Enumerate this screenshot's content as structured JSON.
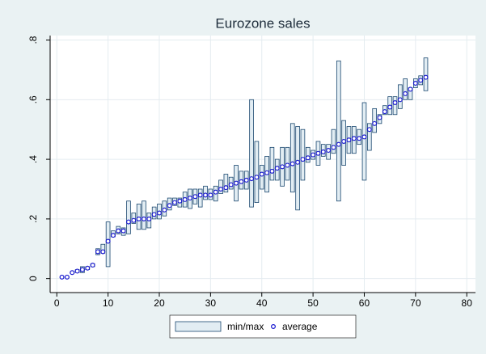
{
  "chart_data": {
    "type": "rangebar",
    "title": "Eurozone sales",
    "x": [
      1,
      2,
      3,
      4,
      5,
      6,
      7,
      8,
      9,
      10,
      11,
      12,
      13,
      14,
      15,
      16,
      17,
      18,
      19,
      20,
      21,
      22,
      23,
      24,
      25,
      26,
      27,
      28,
      29,
      30,
      31,
      32,
      33,
      34,
      35,
      36,
      37,
      38,
      39,
      40,
      41,
      42,
      43,
      44,
      45,
      46,
      47,
      48,
      49,
      50,
      51,
      52,
      53,
      54,
      55,
      56,
      57,
      58,
      59,
      60,
      61,
      62,
      63,
      64,
      65,
      66,
      67,
      68,
      69,
      70,
      71,
      72
    ],
    "series": [
      {
        "name": "min/max",
        "color": "#1a476f",
        "fill": "#e2edf3",
        "min": [
          0.005,
          0.005,
          0.02,
          0.02,
          0.02,
          0.03,
          0.04,
          0.08,
          0.085,
          0.04,
          0.14,
          0.15,
          0.145,
          0.15,
          0.185,
          0.165,
          0.165,
          0.17,
          0.2,
          0.2,
          0.21,
          0.23,
          0.245,
          0.24,
          0.24,
          0.235,
          0.25,
          0.24,
          0.265,
          0.265,
          0.26,
          0.285,
          0.29,
          0.3,
          0.26,
          0.3,
          0.3,
          0.24,
          0.255,
          0.3,
          0.29,
          0.33,
          0.33,
          0.31,
          0.33,
          0.29,
          0.23,
          0.33,
          0.39,
          0.4,
          0.38,
          0.41,
          0.4,
          0.42,
          0.26,
          0.38,
          0.42,
          0.42,
          0.45,
          0.33,
          0.43,
          0.49,
          0.52,
          0.55,
          0.55,
          0.55,
          0.57,
          0.6,
          0.6,
          0.64,
          0.65,
          0.63
        ],
        "max": [
          0.005,
          0.005,
          0.02,
          0.03,
          0.04,
          0.04,
          0.05,
          0.1,
          0.115,
          0.19,
          0.16,
          0.175,
          0.17,
          0.26,
          0.22,
          0.25,
          0.26,
          0.22,
          0.24,
          0.25,
          0.26,
          0.27,
          0.27,
          0.27,
          0.29,
          0.3,
          0.3,
          0.3,
          0.31,
          0.3,
          0.31,
          0.33,
          0.35,
          0.34,
          0.38,
          0.36,
          0.36,
          0.6,
          0.46,
          0.38,
          0.41,
          0.44,
          0.4,
          0.44,
          0.44,
          0.52,
          0.51,
          0.5,
          0.44,
          0.43,
          0.46,
          0.45,
          0.45,
          0.5,
          0.73,
          0.53,
          0.51,
          0.51,
          0.5,
          0.59,
          0.52,
          0.57,
          0.55,
          0.58,
          0.61,
          0.61,
          0.65,
          0.67,
          0.64,
          0.67,
          0.68,
          0.74
        ]
      },
      {
        "name": "average",
        "color": "#1a1ad0",
        "values": [
          0.005,
          0.005,
          0.02,
          0.025,
          0.03,
          0.035,
          0.045,
          0.09,
          0.09,
          0.125,
          0.145,
          0.16,
          0.16,
          0.19,
          0.195,
          0.2,
          0.2,
          0.2,
          0.215,
          0.22,
          0.23,
          0.245,
          0.255,
          0.26,
          0.265,
          0.27,
          0.275,
          0.28,
          0.28,
          0.28,
          0.29,
          0.3,
          0.305,
          0.315,
          0.32,
          0.325,
          0.33,
          0.335,
          0.34,
          0.35,
          0.355,
          0.36,
          0.37,
          0.375,
          0.38,
          0.385,
          0.39,
          0.4,
          0.405,
          0.415,
          0.42,
          0.425,
          0.43,
          0.44,
          0.45,
          0.46,
          0.465,
          0.47,
          0.47,
          0.475,
          0.5,
          0.52,
          0.54,
          0.56,
          0.575,
          0.59,
          0.6,
          0.62,
          0.635,
          0.655,
          0.665,
          0.675
        ]
      }
    ],
    "xlim": [
      -1.3,
      81.7
    ],
    "ylim": [
      -0.047,
      0.815
    ],
    "xticks": [
      0,
      10,
      20,
      30,
      40,
      50,
      60,
      70,
      80
    ],
    "yticks": [
      0,
      {
        "value": 0.2,
        "label": ".2"
      },
      {
        "value": 0.4,
        "label": ".4"
      },
      {
        "value": 0.6,
        "label": ".6"
      },
      {
        "value": 0.8,
        "label": ".8"
      }
    ],
    "grid": true
  }
}
